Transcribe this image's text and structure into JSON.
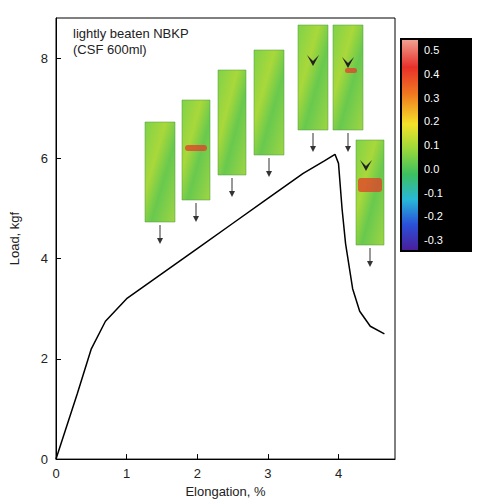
{
  "chart_data": {
    "type": "line",
    "title": "lightly beaten NBKP",
    "subtitle": "(CSF 600ml)",
    "x_label": "Elongation, %",
    "y_label": "Load, kgf",
    "x": [
      0,
      0.15,
      0.3,
      0.5,
      0.7,
      1.0,
      1.5,
      2.0,
      2.5,
      3.0,
      3.5,
      3.8,
      3.95,
      4.0,
      4.05,
      4.1,
      4.2,
      4.3,
      4.45,
      4.65
    ],
    "values": [
      0,
      0.65,
      1.3,
      2.2,
      2.75,
      3.2,
      3.7,
      4.2,
      4.7,
      5.2,
      5.7,
      5.95,
      6.08,
      5.9,
      5.0,
      4.3,
      3.4,
      2.95,
      2.65,
      2.5
    ],
    "color": "#000000",
    "xlim": [
      0,
      4.8
    ],
    "xticks": [
      0,
      1,
      2,
      3,
      4
    ],
    "ylim": [
      0,
      8.8
    ],
    "yticks": [
      0,
      2,
      4,
      6,
      8
    ],
    "grid": false,
    "colorbar": {
      "range": [
        -0.3,
        0.5
      ],
      "ticks": [
        0.5,
        0.4,
        0.3,
        0.2,
        0.1,
        {
          "value": 0,
          "label": "0.0"
        },
        -0.1,
        -0.2,
        -0.3
      ]
    }
  }
}
